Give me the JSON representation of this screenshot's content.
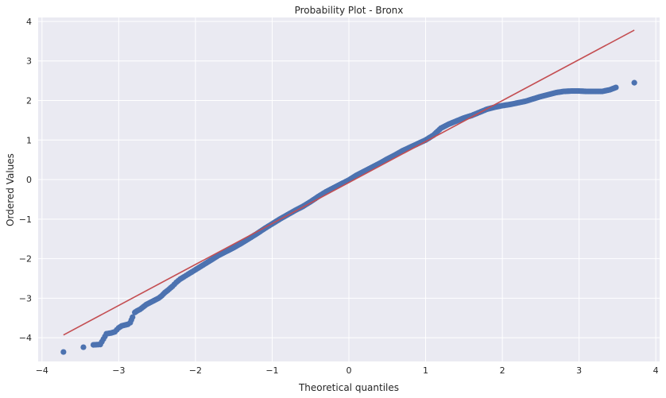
{
  "chart_data": {
    "type": "scatter",
    "title": "Probability Plot - Bronx",
    "xlabel": "Theoretical quantiles",
    "ylabel": "Ordered Values",
    "xlim": [
      -4.05,
      4.05
    ],
    "ylim": [
      -4.6,
      4.1
    ],
    "xticks": [
      -4,
      -3,
      -2,
      -1,
      0,
      1,
      2,
      3,
      4
    ],
    "yticks": [
      -4,
      -3,
      -2,
      -1,
      0,
      1,
      2,
      3,
      4
    ],
    "grid": true,
    "background_color": "#eaeaf2",
    "grid_color": "#ffffff",
    "point_color": "#4c72b0",
    "line_color": "#c44e52",
    "fit_line": {
      "x": [
        -3.72,
        3.72
      ],
      "y": [
        -3.93,
        3.78
      ]
    },
    "series": [
      {
        "points": [
          [
            -3.72,
            -4.36
          ],
          [
            -3.46,
            -4.24
          ],
          [
            -3.33,
            -4.18
          ],
          [
            -3.24,
            -4.17
          ],
          [
            -3.16,
            -3.9
          ],
          [
            -3.1,
            -3.88
          ],
          [
            -3.05,
            -3.85
          ],
          [
            -3.0,
            -3.75
          ],
          [
            -2.96,
            -3.7
          ],
          [
            -2.92,
            -3.68
          ],
          [
            -2.88,
            -3.66
          ],
          [
            -2.85,
            -3.62
          ],
          [
            -2.82,
            -3.48
          ],
          [
            -2.79,
            -3.36
          ],
          [
            -2.76,
            -3.32
          ],
          [
            -2.72,
            -3.28
          ],
          [
            -2.68,
            -3.22
          ],
          [
            -2.64,
            -3.16
          ],
          [
            -2.6,
            -3.12
          ],
          [
            -2.56,
            -3.08
          ],
          [
            -2.52,
            -3.04
          ],
          [
            -2.48,
            -3.0
          ],
          [
            -2.44,
            -2.94
          ],
          [
            -2.4,
            -2.86
          ],
          [
            -2.36,
            -2.8
          ],
          [
            -2.3,
            -2.7
          ],
          [
            -2.25,
            -2.6
          ],
          [
            -2.2,
            -2.52
          ],
          [
            -2.15,
            -2.46
          ],
          [
            -2.1,
            -2.4
          ],
          [
            -2.05,
            -2.34
          ],
          [
            -2.0,
            -2.28
          ],
          [
            -1.9,
            -2.16
          ],
          [
            -1.8,
            -2.04
          ],
          [
            -1.7,
            -1.92
          ],
          [
            -1.6,
            -1.82
          ],
          [
            -1.5,
            -1.72
          ],
          [
            -1.4,
            -1.61
          ],
          [
            -1.3,
            -1.49
          ],
          [
            -1.2,
            -1.37
          ],
          [
            -1.1,
            -1.24
          ],
          [
            -1.0,
            -1.12
          ],
          [
            -0.9,
            -1.0
          ],
          [
            -0.8,
            -0.89
          ],
          [
            -0.7,
            -0.78
          ],
          [
            -0.6,
            -0.68
          ],
          [
            -0.5,
            -0.56
          ],
          [
            -0.4,
            -0.43
          ],
          [
            -0.3,
            -0.31
          ],
          [
            -0.2,
            -0.21
          ],
          [
            -0.1,
            -0.11
          ],
          [
            0.0,
            -0.01
          ],
          [
            0.1,
            0.11
          ],
          [
            0.2,
            0.21
          ],
          [
            0.3,
            0.31
          ],
          [
            0.4,
            0.41
          ],
          [
            0.5,
            0.52
          ],
          [
            0.6,
            0.62
          ],
          [
            0.7,
            0.73
          ],
          [
            0.8,
            0.82
          ],
          [
            0.9,
            0.91
          ],
          [
            1.0,
            1.0
          ],
          [
            1.1,
            1.12
          ],
          [
            1.2,
            1.3
          ],
          [
            1.3,
            1.4
          ],
          [
            1.4,
            1.48
          ],
          [
            1.5,
            1.56
          ],
          [
            1.6,
            1.62
          ],
          [
            1.7,
            1.7
          ],
          [
            1.8,
            1.78
          ],
          [
            1.9,
            1.83
          ],
          [
            2.0,
            1.87
          ],
          [
            2.1,
            1.9
          ],
          [
            2.2,
            1.94
          ],
          [
            2.3,
            1.98
          ],
          [
            2.4,
            2.04
          ],
          [
            2.5,
            2.1
          ],
          [
            2.6,
            2.15
          ],
          [
            2.7,
            2.2
          ],
          [
            2.8,
            2.23
          ],
          [
            2.9,
            2.24
          ],
          [
            3.0,
            2.24
          ],
          [
            3.1,
            2.23
          ],
          [
            3.2,
            2.23
          ],
          [
            3.3,
            2.23
          ],
          [
            3.4,
            2.27
          ],
          [
            3.48,
            2.33
          ],
          [
            3.72,
            2.45
          ]
        ]
      }
    ]
  }
}
